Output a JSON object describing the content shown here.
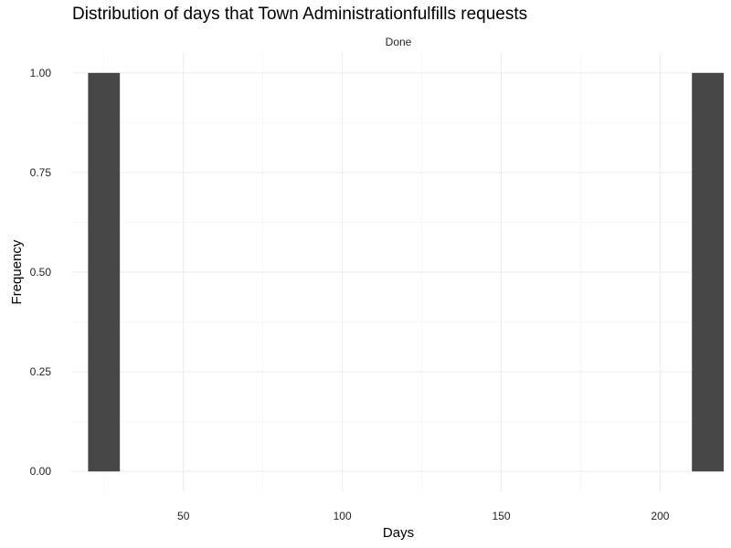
{
  "chart_data": {
    "type": "bar",
    "title": "Distribution of days that Town Administrationfulfills requests",
    "facet_label": "Done",
    "xlabel": "Days",
    "ylabel": "Frequency",
    "xlim": [
      15,
      220
    ],
    "ylim": [
      -0.05,
      1.05
    ],
    "x_ticks": [
      50,
      100,
      150,
      200
    ],
    "x_tick_labels": [
      "50",
      "100",
      "150",
      "200"
    ],
    "y_ticks": [
      0,
      0.25,
      0.5,
      0.75,
      1.0
    ],
    "y_tick_labels": [
      "0.00",
      "0.25",
      "0.50",
      "0.75",
      "1.00"
    ],
    "grid": true,
    "bar_color": "#474747",
    "bins": [
      {
        "x_start": 20,
        "x_end": 30,
        "count": 1
      },
      {
        "x_start": 210,
        "x_end": 220,
        "count": 1
      }
    ]
  }
}
